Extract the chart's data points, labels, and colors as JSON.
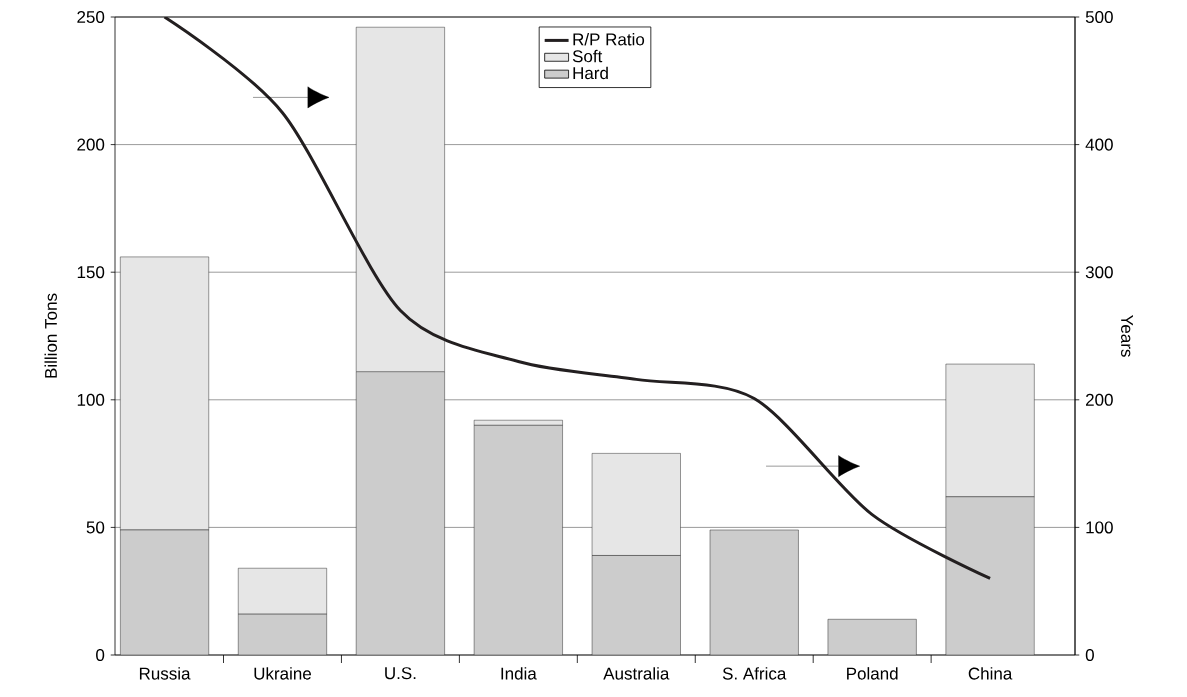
{
  "chart_data": {
    "type": "bar",
    "stacked": true,
    "ylabel": "Billion Tons",
    "y2label": "Years",
    "categories": [
      "Russia",
      "Ukraine",
      "U.S.",
      "India",
      "Australia",
      "S. Africa",
      "Poland",
      "China"
    ],
    "series": [
      {
        "name": "Hard",
        "color": "#cccccc",
        "values": [
          49,
          16,
          111,
          90,
          39,
          49,
          14,
          62
        ]
      },
      {
        "name": "Soft",
        "color": "#e6e6e6",
        "values": [
          107,
          18,
          135,
          2,
          40,
          0,
          0,
          52
        ]
      },
      {
        "name": "R/P Ratio",
        "type": "line",
        "axis": "y2",
        "color": "#231f20",
        "values": [
          500,
          425,
          270,
          230,
          216,
          201,
          110,
          60
        ]
      }
    ],
    "ylim": [
      0,
      250
    ],
    "yticks": [
      0,
      50,
      100,
      150,
      200,
      250
    ],
    "y2lim": [
      0,
      500
    ],
    "y2ticks": [
      0,
      100,
      200,
      300,
      400,
      500
    ],
    "grid": "y",
    "legend": "top"
  }
}
